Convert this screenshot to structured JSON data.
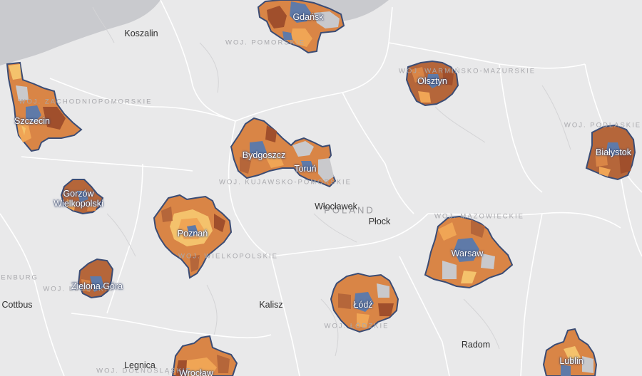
{
  "map": {
    "country_label": "POLAND",
    "colors": {
      "land": "#e9e9ea",
      "sea": "#c9cace",
      "metro_outline": "#3b4c74",
      "palette": [
        "#b5663a",
        "#d98546",
        "#f0a555",
        "#f4c26c",
        "#5f7aa8",
        "#c9c9cc",
        "#a04f2c"
      ]
    },
    "cities": [
      {
        "id": "koszalin",
        "name": "Koszalin"
      },
      {
        "id": "wloclawek",
        "name": "Włocławek"
      },
      {
        "id": "plock",
        "name": "Płock"
      },
      {
        "id": "kalisz",
        "name": "Kalisz"
      },
      {
        "id": "radom",
        "name": "Radom"
      },
      {
        "id": "legnica",
        "name": "Legnica"
      },
      {
        "id": "cottbus",
        "name": "Cottbus"
      }
    ],
    "metro_areas": [
      {
        "id": "gdansk",
        "name": "Gdańsk"
      },
      {
        "id": "szczecin",
        "name": "Szczecin"
      },
      {
        "id": "olsztyn",
        "name": "Olsztyn"
      },
      {
        "id": "bialystok",
        "name": "Białystok"
      },
      {
        "id": "bydgoszcz",
        "name": "Bydgoszcz"
      },
      {
        "id": "torun",
        "name": "Toruń"
      },
      {
        "id": "gorzow",
        "name": "Gorzów Wielkopolski"
      },
      {
        "id": "poznan",
        "name": "Poznań"
      },
      {
        "id": "warsaw",
        "name": "Warsaw"
      },
      {
        "id": "zielona",
        "name": "Zielona Góra"
      },
      {
        "id": "lodz",
        "name": "Łódź"
      },
      {
        "id": "lublin",
        "name": "Lublin"
      },
      {
        "id": "wroclaw",
        "name": "Wrocław"
      }
    ],
    "regions": [
      {
        "id": "pomorskie",
        "name": "WOJ. POMORSKIE"
      },
      {
        "id": "zachodniopomorskie",
        "name": "WOJ. ZACHODNIOPOMORSKIE"
      },
      {
        "id": "warminsko",
        "name": "WOJ. WARMIŃSKO-MAZURSKIE"
      },
      {
        "id": "podlaskie",
        "name": "WOJ. PODLASKIE"
      },
      {
        "id": "kujawsko",
        "name": "WOJ. KUJAWSKO-POMORSKIE"
      },
      {
        "id": "wielkopolskie",
        "name": "WOJ. WIELKOPOLSKIE"
      },
      {
        "id": "mazowieckie",
        "name": "WOJ. MAZOWIECKIE"
      },
      {
        "id": "lubuskie",
        "name": "WOJ. LUBUSKIE"
      },
      {
        "id": "lodzkie",
        "name": "WOJ. ŁÓDZKIE"
      },
      {
        "id": "dolnoslaskie",
        "name": "WOJ. DOLNOŚLĄSKIE"
      },
      {
        "id": "brandenburg",
        "name": "BRANDENBURG"
      }
    ]
  }
}
